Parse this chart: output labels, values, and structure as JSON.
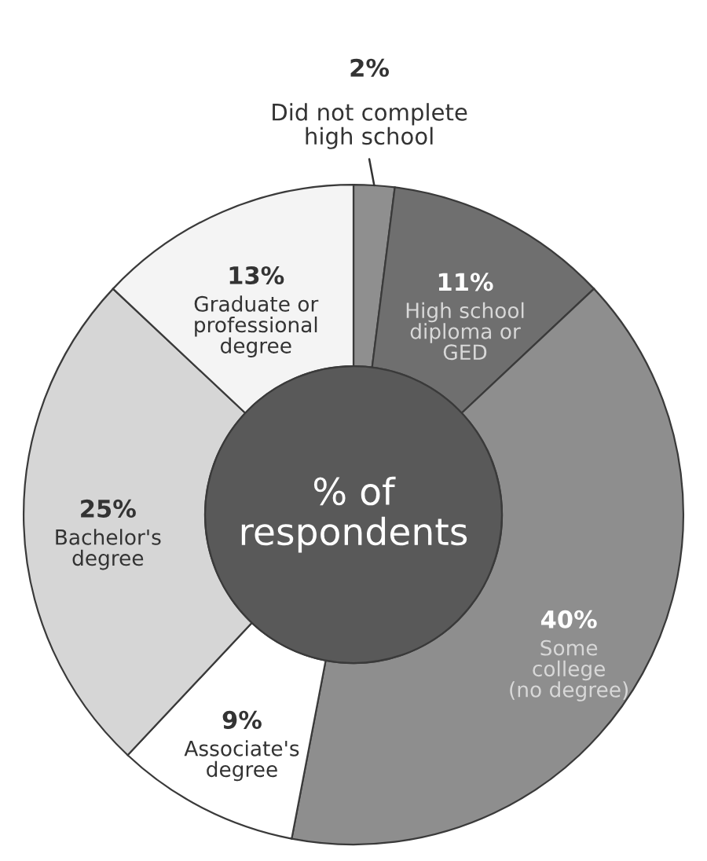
{
  "chart_data": {
    "type": "donut",
    "title": "% of\nrespondents",
    "categories": [
      "Did not complete\nhigh school",
      "High school\ndiploma or\nGED",
      "Some\ncollege\n(no degree)",
      "Associate's\ndegree",
      "Bachelor's\ndegree",
      "Graduate or\nprofessional\ndegree"
    ],
    "values": [
      2,
      11,
      40,
      9,
      25,
      13
    ],
    "value_labels": [
      "2%",
      "11%",
      "40%",
      "9%",
      "25%",
      "13%"
    ],
    "colors": [
      "#8f8f8f",
      "#6f6f6f",
      "#8e8e8e",
      "#ffffff",
      "#d6d6d6",
      "#f4f4f4"
    ]
  }
}
